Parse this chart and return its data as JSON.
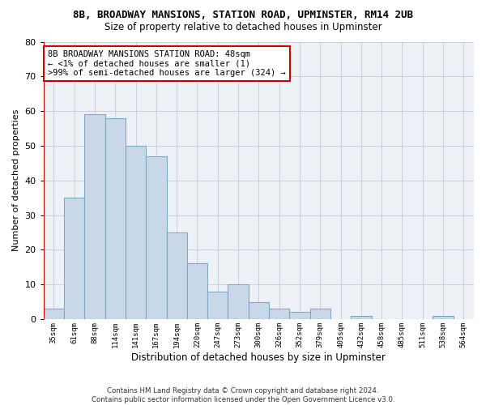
{
  "title": "8B, BROADWAY MANSIONS, STATION ROAD, UPMINSTER, RM14 2UB",
  "subtitle": "Size of property relative to detached houses in Upminster",
  "xlabel": "Distribution of detached houses by size in Upminster",
  "ylabel": "Number of detached properties",
  "bar_color": "#c8d8e8",
  "bar_edge_color": "#7aaac8",
  "highlight_color": "#cc0000",
  "categories": [
    "35sqm",
    "61sqm",
    "88sqm",
    "114sqm",
    "141sqm",
    "167sqm",
    "194sqm",
    "220sqm",
    "247sqm",
    "273sqm",
    "300sqm",
    "326sqm",
    "352sqm",
    "379sqm",
    "405sqm",
    "432sqm",
    "458sqm",
    "485sqm",
    "511sqm",
    "538sqm",
    "564sqm"
  ],
  "values": [
    3,
    35,
    59,
    58,
    50,
    47,
    25,
    16,
    8,
    10,
    5,
    3,
    2,
    3,
    0,
    1,
    0,
    0,
    0,
    1,
    0
  ],
  "highlight_index": 0,
  "ylim": [
    0,
    80
  ],
  "yticks": [
    0,
    10,
    20,
    30,
    40,
    50,
    60,
    70,
    80
  ],
  "annotation_lines": [
    "8B BROADWAY MANSIONS STATION ROAD: 48sqm",
    "← <1% of detached houses are smaller (1)",
    ">99% of semi-detached houses are larger (324) →"
  ],
  "footnote1": "Contains HM Land Registry data © Crown copyright and database right 2024.",
  "footnote2": "Contains public sector information licensed under the Open Government Licence v3.0."
}
